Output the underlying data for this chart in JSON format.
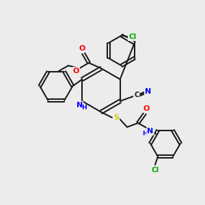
{
  "bg_color": "#ececec",
  "bond_color": "#1a1a1a",
  "atom_colors": {
    "O": "#ff0000",
    "N": "#0000ff",
    "S": "#cccc00",
    "Cl": "#00aa00",
    "C": "#1a1a1a"
  },
  "figsize": [
    3.0,
    3.0
  ],
  "dpi": 100
}
